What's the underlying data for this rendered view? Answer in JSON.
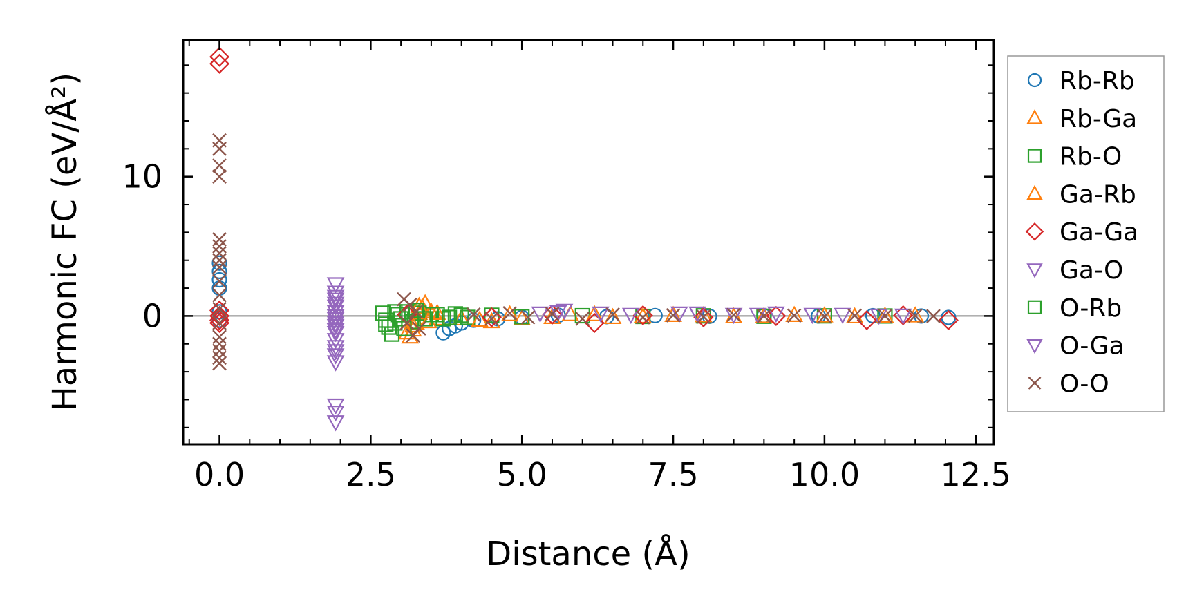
{
  "chart_data": {
    "type": "scatter",
    "xlabel": "Distance (Å)",
    "ylabel": "Harmonic FC (eV/Å²)",
    "xlim": [
      -0.6,
      12.8
    ],
    "ylim": [
      -9.2,
      19.8
    ],
    "xticks": [
      0.0,
      2.5,
      5.0,
      7.5,
      10.0,
      12.5
    ],
    "xtick_labels": [
      "0.0",
      "2.5",
      "5.0",
      "7.5",
      "10.0",
      "12.5"
    ],
    "yticks": [
      0,
      10
    ],
    "ytick_labels": [
      "0",
      "10"
    ],
    "zero_line": true,
    "grid": false,
    "legend_position": "outside-right",
    "series": [
      {
        "name": "Rb-Rb",
        "marker": "circle",
        "color": "#1f77b4",
        "x": [
          0,
          0,
          0,
          0,
          0,
          0,
          3.7,
          3.8,
          3.9,
          4.0,
          4.2,
          4.6,
          5.0,
          5.6,
          6.4,
          7.2,
          8.1,
          9.0,
          9.9,
          10.8,
          11.6,
          12.05
        ],
        "y": [
          3.8,
          3.2,
          2.6,
          2.0,
          0.3,
          -0.3,
          -1.2,
          -0.9,
          -0.7,
          -0.5,
          -0.3,
          -0.2,
          -0.1,
          0.05,
          -0.05,
          0.03,
          -0.02,
          0.02,
          0.0,
          0.02,
          0.0,
          -0.1
        ]
      },
      {
        "name": "Rb-Ga",
        "marker": "triangle-up",
        "color": "#ff7f0e",
        "x": [
          3.15,
          3.2,
          3.25,
          3.3,
          3.35,
          3.4,
          3.5,
          3.6,
          4.0,
          4.5,
          5.0,
          5.8,
          6.5,
          7.5,
          8.5,
          9.5,
          10.5,
          11.5
        ],
        "y": [
          -1.5,
          -1.0,
          -0.5,
          0.2,
          0.6,
          0.9,
          0.3,
          -0.2,
          -0.2,
          -0.4,
          -0.2,
          0.1,
          -0.1,
          0.05,
          -0.05,
          0.05,
          -0.05,
          0.02
        ]
      },
      {
        "name": "Rb-O",
        "marker": "square",
        "color": "#2ca02c",
        "x": [
          2.7,
          2.75,
          2.8,
          2.85,
          2.9,
          2.95,
          3.0,
          3.1,
          3.2,
          3.3,
          3.5,
          3.7,
          3.9,
          4.1,
          4.5,
          5.0,
          6.0,
          7.0,
          8.0,
          9.0,
          10.0,
          11.0
        ],
        "y": [
          0.2,
          -0.3,
          -0.8,
          -1.3,
          -0.5,
          0.1,
          -0.2,
          0.3,
          -0.4,
          0.2,
          0.1,
          -0.2,
          0.15,
          -0.1,
          0.05,
          -0.05,
          0.02,
          -0.03,
          0.01,
          -0.02,
          0.01,
          0.0
        ]
      },
      {
        "name": "Ga-Rb",
        "marker": "triangle-up",
        "color": "#ff7f0e",
        "x": [
          3.1,
          3.2,
          3.3,
          3.45,
          3.6,
          4.3,
          4.8,
          5.5,
          6.2,
          7.0,
          8.0,
          9.0,
          10.0,
          11.0
        ],
        "y": [
          -1.2,
          -0.7,
          0.7,
          -0.4,
          0.2,
          -0.3,
          0.1,
          -0.1,
          0.1,
          -0.05,
          0.03,
          -0.03,
          0.02,
          0.0
        ]
      },
      {
        "name": "Ga-Ga",
        "marker": "diamond",
        "color": "#d62728",
        "x": [
          0,
          0,
          0,
          0,
          0,
          0,
          3.1,
          4.5,
          5.5,
          6.2,
          7.0,
          8.0,
          9.2,
          10.7,
          11.3,
          12.05
        ],
        "y": [
          18.6,
          18.1,
          0.4,
          0.0,
          -0.3,
          -0.5,
          0.1,
          -0.1,
          0.1,
          -0.5,
          0.05,
          -0.1,
          0.0,
          -0.3,
          0.05,
          -0.3
        ]
      },
      {
        "name": "Ga-O",
        "marker": "triangle-down",
        "color": "#9467bd",
        "x": [
          1.92,
          1.92,
          1.92,
          1.92,
          1.92,
          1.92,
          1.92,
          1.92,
          1.92,
          1.92,
          1.92,
          1.92,
          1.92,
          1.92,
          5.3,
          5.7,
          6.3,
          7.6,
          8.5,
          9.2,
          10.3,
          11.3
        ],
        "y": [
          2.3,
          1.7,
          1.2,
          0.7,
          0.3,
          -0.2,
          -0.7,
          -1.2,
          -1.7,
          -2.2,
          -2.8,
          -3.3,
          -6.4,
          -7.6,
          0.2,
          0.4,
          0.2,
          0.2,
          0.1,
          0.2,
          0.1,
          0.05
        ]
      },
      {
        "name": "O-Rb",
        "marker": "square",
        "color": "#2ca02c",
        "x": [
          2.75,
          2.9,
          3.05,
          3.25,
          3.4,
          3.6,
          3.8,
          4.0
        ],
        "y": [
          -0.6,
          0.3,
          -0.9,
          0.4,
          -0.2,
          0.1,
          -0.1,
          0.05
        ]
      },
      {
        "name": "O-Ga",
        "marker": "triangle-down",
        "color": "#9467bd",
        "x": [
          1.92,
          1.92,
          1.92,
          1.92,
          1.92,
          1.92,
          1.92,
          5.6,
          6.8,
          7.9,
          8.9,
          9.8,
          10.9
        ],
        "y": [
          1.4,
          0.9,
          0.0,
          -0.5,
          -1.0,
          -2.5,
          -6.9,
          0.3,
          0.1,
          0.2,
          0.1,
          0.1,
          0.05
        ]
      },
      {
        "name": "O-O",
        "marker": "x",
        "color": "#8c564b",
        "x": [
          0,
          0,
          0,
          0,
          0,
          0,
          0,
          0,
          0,
          0,
          0,
          0,
          0,
          0,
          0,
          0,
          0,
          0,
          3.05,
          3.1,
          3.15,
          3.2,
          3.25,
          3.3,
          4.2,
          4.5,
          4.8,
          5.1,
          5.5,
          6.0,
          6.5,
          7.0,
          7.5,
          8.0,
          8.5,
          9.0,
          9.5,
          10.0,
          10.5,
          11.0,
          11.5,
          11.8
        ],
        "y": [
          12.6,
          12.0,
          10.8,
          10.0,
          5.5,
          5.0,
          4.5,
          4.0,
          3.5,
          2.5,
          1.5,
          0.5,
          -0.5,
          -1.5,
          -2.0,
          -2.5,
          -3.0,
          -3.4,
          1.2,
          -0.5,
          0.8,
          -1.4,
          0.3,
          -0.9,
          0.1,
          -0.2,
          0.2,
          -0.1,
          0.15,
          -0.2,
          0.1,
          -0.1,
          0.05,
          -0.05,
          0.08,
          0.0,
          0.03,
          -0.03,
          0.02,
          0.0,
          0.01,
          -0.01
        ]
      }
    ]
  }
}
